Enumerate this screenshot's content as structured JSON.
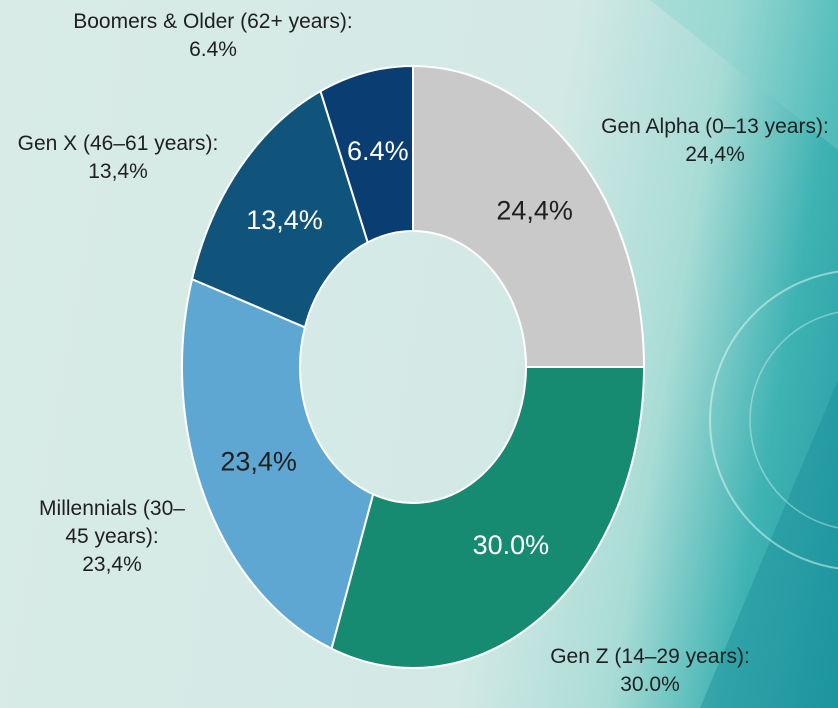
{
  "chart_data": {
    "type": "donut",
    "categories": [
      "Gen Alpha (0–13 years):",
      "Gen Z (14–29 years):",
      "Millennials (30–45 years):",
      "Gen X (46–61 years):",
      "Boomers & Older (62+ years):"
    ],
    "values": [
      24.4,
      30.0,
      23.4,
      13.4,
      6.4
    ],
    "value_labels": [
      "24,4%",
      "30.0%",
      "23,4%",
      "13,4%",
      "6.4%"
    ],
    "colors": [
      "#c9c9c9",
      "#178a72",
      "#5ea7d2",
      "#11547b",
      "#0a3e72"
    ]
  }
}
